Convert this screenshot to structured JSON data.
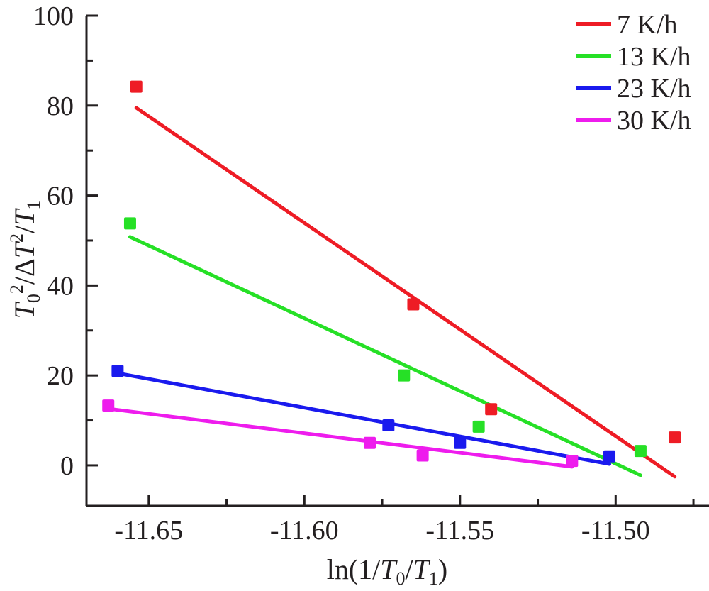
{
  "chart_data": {
    "type": "scatter",
    "title": "",
    "xlabel": "ln(1/T0/T1)",
    "ylabel": "T0^2/ΔT^2/T1",
    "xlim": [
      -11.67,
      -11.47
    ],
    "ylim": [
      -9,
      100
    ],
    "x_ticks": [
      {
        "value": -11.65,
        "label": "-11.65"
      },
      {
        "value": -11.6,
        "label": "-11.60"
      },
      {
        "value": -11.55,
        "label": "-11.55"
      },
      {
        "value": -11.5,
        "label": "-11.50"
      }
    ],
    "y_ticks": [
      {
        "value": 0,
        "label": "0"
      },
      {
        "value": 20,
        "label": "20"
      },
      {
        "value": 40,
        "label": "40"
      },
      {
        "value": 60,
        "label": "60"
      },
      {
        "value": 80,
        "label": "80"
      },
      {
        "value": 100,
        "label": "100"
      }
    ],
    "legend_position": "top-right",
    "grid": false,
    "series": [
      {
        "name": "7 K/h",
        "color": "#ee1c25",
        "points": [
          [
            -11.654,
            84.2
          ],
          [
            -11.565,
            35.8
          ],
          [
            -11.54,
            12.5
          ],
          [
            -11.481,
            6.2
          ]
        ],
        "fit_line": [
          [
            -11.654,
            79.5
          ],
          [
            -11.481,
            -2.5
          ]
        ]
      },
      {
        "name": "13 K/h",
        "color": "#26e026",
        "points": [
          [
            -11.656,
            53.8
          ],
          [
            -11.568,
            20.0
          ],
          [
            -11.544,
            8.6
          ],
          [
            -11.492,
            3.2
          ]
        ],
        "fit_line": [
          [
            -11.656,
            50.8
          ],
          [
            -11.492,
            -2.2
          ]
        ]
      },
      {
        "name": "23 K/h",
        "color": "#1a1aee",
        "points": [
          [
            -11.66,
            21.0
          ],
          [
            -11.573,
            8.9
          ],
          [
            -11.55,
            5.0
          ],
          [
            -11.502,
            2.0
          ]
        ],
        "fit_line": [
          [
            -11.66,
            20.5
          ],
          [
            -11.502,
            0.3
          ]
        ]
      },
      {
        "name": "30 K/h",
        "color": "#ee1ced",
        "points": [
          [
            -11.663,
            13.3
          ],
          [
            -11.579,
            5.0
          ],
          [
            -11.562,
            2.2
          ],
          [
            -11.514,
            1.0
          ]
        ],
        "fit_line": [
          [
            -11.663,
            12.6
          ],
          [
            -11.514,
            -0.3
          ]
        ]
      }
    ]
  }
}
